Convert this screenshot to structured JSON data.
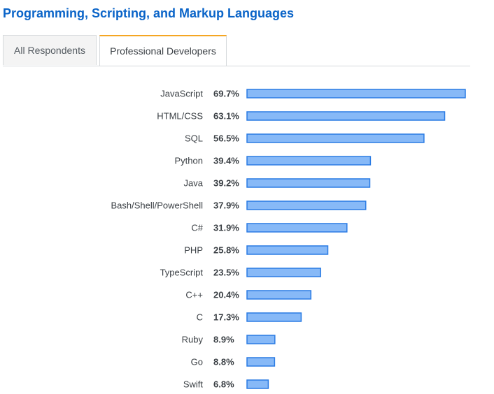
{
  "title": "Programming, Scripting, and Markup Languages",
  "tabs": [
    {
      "label": "All Respondents",
      "active": false
    },
    {
      "label": "Professional Developers",
      "active": true
    }
  ],
  "colors": {
    "title": "#0a64c8",
    "bar_fill": "#87b9f7",
    "bar_stroke": "#2a7be4",
    "active_tab_accent": "#f5a623"
  },
  "chart_data": {
    "type": "bar",
    "orientation": "horizontal",
    "unit": "%",
    "categories": [
      "JavaScript",
      "HTML/CSS",
      "SQL",
      "Python",
      "Java",
      "Bash/Shell/PowerShell",
      "C#",
      "PHP",
      "TypeScript",
      "C++",
      "C",
      "Ruby",
      "Go",
      "Swift"
    ],
    "values": [
      69.7,
      63.1,
      56.5,
      39.4,
      39.2,
      37.9,
      31.9,
      25.8,
      23.5,
      20.4,
      17.3,
      8.9,
      8.8,
      6.8
    ],
    "value_labels": [
      "69.7%",
      "63.1%",
      "56.5%",
      "39.4%",
      "39.2%",
      "37.9%",
      "31.9%",
      "25.8%",
      "23.5%",
      "20.4%",
      "17.3%",
      "8.9%",
      "8.8%",
      "6.8%"
    ],
    "xlim": [
      0,
      69.7
    ],
    "grid": false,
    "legend": "none"
  }
}
